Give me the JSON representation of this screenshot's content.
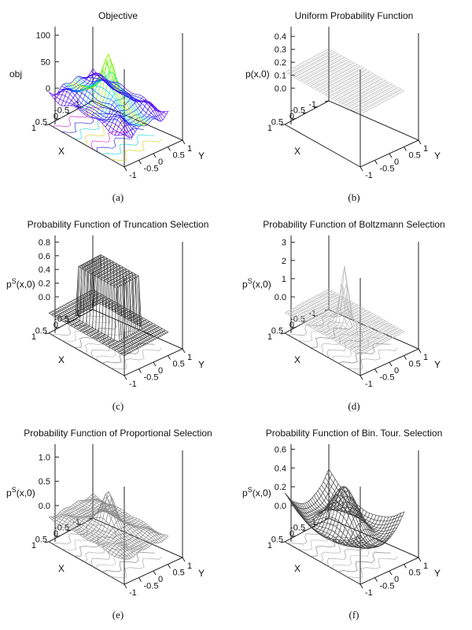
{
  "chart_data": [
    {
      "id": "a",
      "type": "surface3d",
      "title": "Objective",
      "caption": "(a)",
      "zlabel": "obj",
      "xlabel": "X",
      "ylabel": "Y",
      "z_ticks": [
        "0",
        "50",
        "100"
      ],
      "z_tick_values": [
        0,
        50,
        100
      ],
      "zlim": [
        0,
        110
      ],
      "x_ticks": [
        "-1",
        "-0.5",
        "0",
        "0.5",
        "1"
      ],
      "y_ticks": [
        "-1",
        "-0.5",
        "0",
        "0.5",
        "1"
      ],
      "xlim": [
        -1,
        1
      ],
      "ylim": [
        -1,
        1
      ],
      "peak": 100,
      "style": "rainbow",
      "contours": true
    },
    {
      "id": "b",
      "type": "surface3d",
      "title": "Uniform Probability Function",
      "caption": "(b)",
      "zlabel": "p(x,0)",
      "xlabel": "X",
      "ylabel": "Y",
      "z_ticks": [
        "0.0",
        "0.1",
        "0.2",
        "0.3",
        "0.4"
      ],
      "z_tick_values": [
        0,
        0.1,
        0.2,
        0.3,
        0.4
      ],
      "zlim": [
        0,
        0.45
      ],
      "x_ticks": [
        "-1",
        "-0.5",
        "0",
        "0.5",
        "1"
      ],
      "y_ticks": [
        "-1",
        "-0.5",
        "0",
        "0.5",
        "1"
      ],
      "xlim": [
        -1,
        1
      ],
      "ylim": [
        -1,
        1
      ],
      "constant_value": 0.25,
      "style": "flat",
      "contours": false
    },
    {
      "id": "c",
      "type": "surface3d",
      "title": "Probability Function of Truncation Selection",
      "caption": "(c)",
      "zlabel_base": "p",
      "zlabel_sup": "S",
      "zlabel_rest": "(x,0)",
      "xlabel": "X",
      "ylabel": "Y",
      "z_ticks": [
        "0.0",
        "0.2",
        "0.4",
        "0.6",
        "0.8"
      ],
      "z_tick_values": [
        0,
        0.2,
        0.4,
        0.6,
        0.8
      ],
      "zlim": [
        0,
        0.85
      ],
      "x_ticks": [
        "-1",
        "-0.5",
        "0",
        "0.5",
        "1"
      ],
      "y_ticks": [
        "-1",
        "-0.5",
        "0",
        "0.5",
        "1"
      ],
      "xlim": [
        -1,
        1
      ],
      "ylim": [
        -1,
        1
      ],
      "plateau": 0.75,
      "style": "truncation",
      "contours": true
    },
    {
      "id": "d",
      "type": "surface3d",
      "title": "Probability Function of Boltzmann Selection",
      "caption": "(d)",
      "zlabel_base": "p",
      "zlabel_sup": "S",
      "zlabel_rest": "(x,0)",
      "xlabel": "X",
      "ylabel": "Y",
      "z_ticks": [
        "0.0",
        "1",
        "2",
        "3"
      ],
      "z_tick_values": [
        0,
        1,
        2,
        3
      ],
      "zlim": [
        0,
        3.2
      ],
      "x_ticks": [
        "-1",
        "-0.5",
        "0",
        "0.5",
        "1"
      ],
      "y_ticks": [
        "-1",
        "-0.5",
        "0",
        "0.5",
        "1"
      ],
      "xlim": [
        -1,
        1
      ],
      "ylim": [
        -1,
        1
      ],
      "peak": 3.0,
      "style": "spike",
      "contours": true
    },
    {
      "id": "e",
      "type": "surface3d",
      "title": "Probability Function of Proportional Selection",
      "caption": "(e)",
      "zlabel_base": "p",
      "zlabel_sup": "S",
      "zlabel_rest": "(x,0)",
      "xlabel": "X",
      "ylabel": "Y",
      "z_ticks": [
        "0.0",
        "0.5",
        "1.0"
      ],
      "z_tick_values": [
        0,
        0.5,
        1.0
      ],
      "zlim": [
        0,
        1.2
      ],
      "x_ticks": [
        "-1",
        "-0.5",
        "0",
        "0.5",
        "1"
      ],
      "y_ticks": [
        "-1",
        "-0.5",
        "0",
        "0.5",
        "1"
      ],
      "xlim": [
        -1,
        1
      ],
      "ylim": [
        -1,
        1
      ],
      "peak": 0.75,
      "style": "gray",
      "contours": true
    },
    {
      "id": "f",
      "type": "surface3d",
      "title": "Probability Function of Bin. Tour. Selection",
      "caption": "(f)",
      "zlabel_base": "p",
      "zlabel_sup": "S",
      "zlabel_rest": "(x,0)",
      "xlabel": "X",
      "ylabel": "Y",
      "z_ticks": [
        "0.0",
        "0.2",
        "0.4",
        "0.6"
      ],
      "z_tick_values": [
        0,
        0.2,
        0.4,
        0.6
      ],
      "zlim": [
        0,
        0.62
      ],
      "x_ticks": [
        "-1",
        "-0.5",
        "0",
        "0.5",
        "1"
      ],
      "y_ticks": [
        "-1",
        "-0.5",
        "0",
        "0.5",
        "1"
      ],
      "xlim": [
        -1,
        1
      ],
      "ylim": [
        -1,
        1
      ],
      "peak": 0.55,
      "style": "dark",
      "contours": true
    }
  ]
}
